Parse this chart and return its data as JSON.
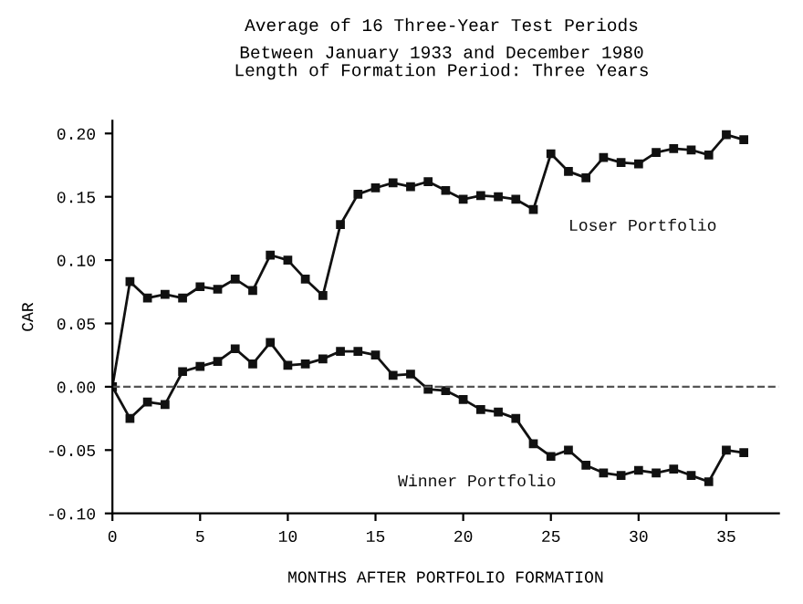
{
  "chart_data": {
    "type": "line",
    "title": "Average of 16 Three-Year Test Periods",
    "subtitle": "Between January 1933 and December 1980\nLength of Formation Period: Three Years",
    "xlabel": "MONTHS AFTER PORTFOLIO FORMATION",
    "ylabel": "CAR",
    "x": [
      0,
      1,
      2,
      3,
      4,
      5,
      6,
      7,
      8,
      9,
      10,
      11,
      12,
      13,
      14,
      15,
      16,
      17,
      18,
      19,
      20,
      21,
      22,
      23,
      24,
      25,
      26,
      27,
      28,
      29,
      30,
      31,
      32,
      33,
      34,
      35,
      36
    ],
    "series": [
      {
        "name": "Loser Portfolio",
        "color": "#111111",
        "values": [
          0.0,
          0.083,
          0.07,
          0.073,
          0.07,
          0.079,
          0.077,
          0.085,
          0.076,
          0.104,
          0.1,
          0.085,
          0.072,
          0.128,
          0.152,
          0.157,
          0.161,
          0.158,
          0.162,
          0.155,
          0.148,
          0.151,
          0.15,
          0.148,
          0.14,
          0.184,
          0.17,
          0.165,
          0.181,
          0.177,
          0.176,
          0.185,
          0.188,
          0.187,
          0.183,
          0.199,
          0.195
        ]
      },
      {
        "name": "Winner Portfolio",
        "color": "#111111",
        "values": [
          0.0,
          -0.025,
          -0.012,
          -0.014,
          0.012,
          0.016,
          0.02,
          0.03,
          0.018,
          0.035,
          0.017,
          0.018,
          0.022,
          0.028,
          0.028,
          0.025,
          0.009,
          0.01,
          -0.002,
          -0.003,
          -0.01,
          -0.018,
          -0.02,
          -0.025,
          -0.045,
          -0.055,
          -0.05,
          -0.062,
          -0.068,
          -0.07,
          -0.066,
          -0.068,
          -0.065,
          -0.07,
          -0.075,
          -0.05,
          -0.052
        ]
      }
    ],
    "xlim": [
      0,
      38
    ],
    "ylim": [
      -0.1,
      0.21
    ],
    "xticks": [
      0,
      5,
      10,
      15,
      20,
      25,
      30,
      35
    ],
    "yticks": [
      {
        "value": -0.1,
        "label": "-0.10"
      },
      {
        "value": -0.05,
        "label": "-0.05"
      },
      {
        "value": 0,
        "label": "0.00"
      },
      {
        "value": 0.05,
        "label": "0.05"
      },
      {
        "value": 0.1,
        "label": "0.10"
      },
      {
        "value": 0.15,
        "label": "0.15"
      },
      {
        "value": 0.2,
        "label": "0.20"
      }
    ],
    "ref_lines": [
      {
        "axis": "y",
        "value": 0,
        "line_style": "dashed",
        "color": "#555555"
      }
    ],
    "marker": "square",
    "line_style": "solid",
    "grid": false,
    "legend": false
  }
}
